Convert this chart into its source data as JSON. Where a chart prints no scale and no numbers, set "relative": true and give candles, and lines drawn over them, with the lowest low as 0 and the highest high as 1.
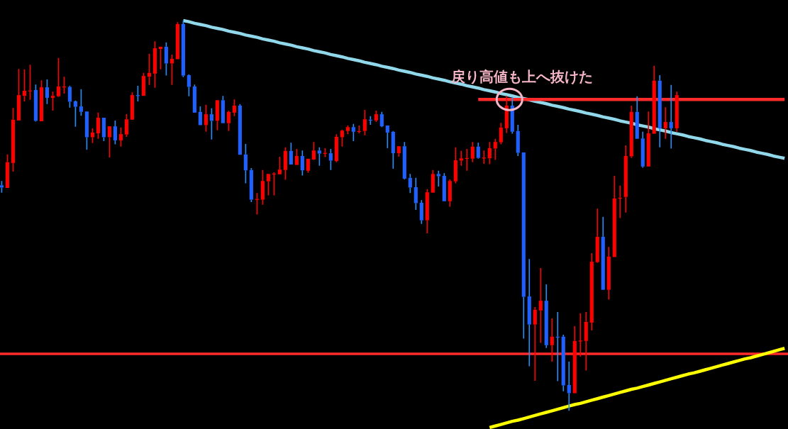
{
  "chart_data": {
    "type": "candlestick",
    "relative": true,
    "categories": [
      null,
      null,
      null,
      null,
      null,
      null,
      null,
      null,
      null,
      null,
      null,
      null,
      null,
      null,
      null,
      null,
      null,
      null,
      null,
      null,
      null,
      null,
      null,
      null,
      null,
      null,
      null,
      null,
      null,
      null,
      null,
      null,
      null,
      null,
      null,
      null,
      null,
      null,
      null,
      null,
      null,
      null,
      null,
      null,
      null,
      null,
      null,
      null,
      null,
      null,
      null,
      null,
      null,
      null,
      null,
      null,
      null,
      null,
      null,
      null,
      null,
      null,
      null,
      null,
      null,
      null,
      null,
      null,
      null,
      null,
      null,
      null,
      null,
      null,
      null,
      null,
      null,
      null,
      null,
      null,
      null,
      null,
      null,
      null,
      null,
      null,
      null,
      null,
      null,
      null,
      null,
      null,
      null,
      null,
      null,
      null,
      null,
      null,
      null,
      null,
      null,
      null,
      null,
      null,
      null,
      null,
      null,
      null,
      null,
      null,
      null,
      null,
      null,
      null,
      null,
      null,
      null,
      null,
      null,
      null,
      null,
      null,
      null,
      null,
      null,
      null,
      null,
      null,
      null,
      null,
      null,
      null,
      null,
      null,
      null,
      null,
      null,
      null,
      null
    ],
    "ohlc": [
      [
        0.578,
        0.589,
        0.559,
        0.572
      ],
      [
        0.571,
        0.657,
        0.571,
        0.637
      ],
      [
        0.635,
        0.776,
        0.613,
        0.746
      ],
      [
        0.744,
        0.876,
        0.744,
        0.809
      ],
      [
        0.807,
        0.875,
        0.793,
        0.82
      ],
      [
        0.82,
        0.887,
        0.797,
        0.821
      ],
      [
        0.822,
        0.836,
        0.741,
        0.743
      ],
      [
        0.742,
        0.847,
        0.742,
        0.829
      ],
      [
        0.829,
        0.849,
        0.786,
        0.802
      ],
      [
        0.802,
        0.818,
        0.769,
        0.807
      ],
      [
        0.806,
        0.904,
        0.804,
        0.831
      ],
      [
        0.83,
        0.856,
        0.813,
        0.831
      ],
      [
        0.83,
        0.833,
        0.777,
        0.792
      ],
      [
        0.793,
        0.795,
        0.728,
        0.779
      ],
      [
        0.78,
        0.824,
        0.756,
        0.766
      ],
      [
        0.767,
        0.767,
        0.669,
        0.701
      ],
      [
        0.701,
        0.724,
        0.686,
        0.713
      ],
      [
        0.711,
        0.764,
        0.697,
        0.751
      ],
      [
        0.751,
        0.751,
        0.691,
        0.701
      ],
      [
        0.701,
        0.729,
        0.649,
        0.729
      ],
      [
        0.729,
        0.744,
        0.683,
        0.693
      ],
      [
        0.693,
        0.726,
        0.677,
        0.709
      ],
      [
        0.708,
        0.76,
        0.702,
        0.747
      ],
      [
        0.746,
        0.816,
        0.746,
        0.809
      ],
      [
        0.809,
        0.833,
        0.793,
        0.808
      ],
      [
        0.807,
        0.866,
        0.807,
        0.858
      ],
      [
        0.856,
        0.915,
        0.835,
        0.866
      ],
      [
        0.864,
        0.947,
        0.828,
        0.929
      ],
      [
        0.927,
        0.933,
        0.875,
        0.933
      ],
      [
        0.933,
        0.944,
        0.859,
        0.89
      ],
      [
        0.89,
        0.913,
        0.835,
        0.902
      ],
      [
        0.901,
        0.996,
        0.901,
        0.991
      ],
      [
        0.991,
        1,
        0.855,
        0.859
      ],
      [
        0.86,
        0.862,
        0.806,
        0.83
      ],
      [
        0.831,
        0.836,
        0.764,
        0.764
      ],
      [
        0.766,
        0.78,
        0.732,
        0.732
      ],
      [
        0.732,
        0.784,
        0.715,
        0.76
      ],
      [
        0.76,
        0.775,
        0.695,
        0.743
      ],
      [
        0.743,
        0.796,
        0.719,
        0.796
      ],
      [
        0.796,
        0.807,
        0.737,
        0.737
      ],
      [
        0.737,
        0.769,
        0.717,
        0.766
      ],
      [
        0.764,
        0.798,
        0.755,
        0.782
      ],
      [
        0.782,
        0.786,
        0.656,
        0.656
      ],
      [
        0.657,
        0.684,
        0.583,
        0.616
      ],
      [
        0.617,
        0.622,
        0.535,
        0.541
      ],
      [
        0.542,
        0.558,
        0.503,
        0.543
      ],
      [
        0.541,
        0.617,
        0.528,
        0.589
      ],
      [
        0.588,
        0.607,
        0.552,
        0.607
      ],
      [
        0.607,
        0.611,
        0.552,
        0.608
      ],
      [
        0.606,
        0.651,
        0.606,
        0.618
      ],
      [
        0.617,
        0.675,
        0.592,
        0.666
      ],
      [
        0.666,
        0.687,
        0.631,
        0.631
      ],
      [
        0.63,
        0.671,
        0.63,
        0.653
      ],
      [
        0.653,
        0.667,
        0.603,
        0.616
      ],
      [
        0.615,
        0.646,
        0.61,
        0.646
      ],
      [
        0.644,
        0.689,
        0.643,
        0.667
      ],
      [
        0.667,
        0.675,
        0.628,
        0.659
      ],
      [
        0.66,
        0.673,
        0.65,
        0.661
      ],
      [
        0.66,
        0.671,
        0.617,
        0.641
      ],
      [
        0.64,
        0.709,
        0.637,
        0.702
      ],
      [
        0.701,
        0.72,
        0.677,
        0.718
      ],
      [
        0.717,
        0.731,
        0.709,
        0.727
      ],
      [
        0.727,
        0.735,
        0.691,
        0.715
      ],
      [
        0.716,
        0.731,
        0.711,
        0.717
      ],
      [
        0.717,
        0.771,
        0.706,
        0.747
      ],
      [
        0.746,
        0.755,
        0.733,
        0.745
      ],
      [
        0.744,
        0.769,
        0.74,
        0.76
      ],
      [
        0.76,
        0.766,
        0.727,
        0.729
      ],
      [
        0.731,
        0.731,
        0.673,
        0.713
      ],
      [
        0.715,
        0.717,
        0.62,
        0.66
      ],
      [
        0.66,
        0.678,
        0.651,
        0.678
      ],
      [
        0.678,
        0.689,
        0.593,
        0.595
      ],
      [
        0.597,
        0.607,
        0.558,
        0.572
      ],
      [
        0.573,
        0.597,
        0.515,
        0.532
      ],
      [
        0.533,
        0.54,
        0.479,
        0.488
      ],
      [
        0.488,
        0.568,
        0.455,
        0.56
      ],
      [
        0.559,
        0.617,
        0.559,
        0.607
      ],
      [
        0.607,
        0.615,
        0.575,
        0.601
      ],
      [
        0.602,
        0.609,
        0.537,
        0.537
      ],
      [
        0.537,
        0.593,
        0.523,
        0.589
      ],
      [
        0.588,
        0.675,
        0.583,
        0.642
      ],
      [
        0.641,
        0.666,
        0.628,
        0.647
      ],
      [
        0.647,
        0.671,
        0.615,
        0.648
      ],
      [
        0.646,
        0.689,
        0.637,
        0.677
      ],
      [
        0.677,
        0.687,
        0.646,
        0.648
      ],
      [
        0.648,
        0.667,
        0.633,
        0.649
      ],
      [
        0.647,
        0.689,
        0.632,
        0.673
      ],
      [
        0.672,
        0.697,
        0.643,
        0.689
      ],
      [
        0.688,
        0.738,
        0.683,
        0.726
      ],
      [
        0.724,
        0.807,
        0.712,
        0.782
      ],
      [
        0.782,
        0.804,
        0.71,
        0.715
      ],
      [
        0.717,
        0.733,
        0.653,
        0.661
      ],
      [
        0.662,
        0.662,
        0.185,
        0.292
      ],
      [
        0.293,
        0.389,
        0.114,
        0.221
      ],
      [
        0.221,
        0.266,
        0.077,
        0.259
      ],
      [
        0.257,
        0.366,
        0.174,
        0.282
      ],
      [
        0.282,
        0.324,
        0.161,
        0.168
      ],
      [
        0.168,
        0.237,
        0.126,
        0.19
      ],
      [
        0.19,
        0.253,
        0.076,
        0.189
      ],
      [
        0.19,
        0.195,
        0.05,
        0.065
      ],
      [
        0.066,
        0.126,
        0,
        0.045
      ],
      [
        0.045,
        0.217,
        0.045,
        0.179
      ],
      [
        0.179,
        0.25,
        0.139,
        0.18
      ],
      [
        0.179,
        0.253,
        0.103,
        0.228
      ],
      [
        0.226,
        0.404,
        0.206,
        0.382
      ],
      [
        0.381,
        0.518,
        0.379,
        0.446
      ],
      [
        0.446,
        0.497,
        0.31,
        0.31
      ],
      [
        0.31,
        0.42,
        0.285,
        0.395
      ],
      [
        0.394,
        0.602,
        0.394,
        0.544
      ],
      [
        0.545,
        0.577,
        0.494,
        0.546
      ],
      [
        0.548,
        0.68,
        0.508,
        0.653
      ],
      [
        0.652,
        0.782,
        0.648,
        0.766
      ],
      [
        0.766,
        0.806,
        0.697,
        0.697
      ],
      [
        0.698,
        0.715,
        0.623,
        0.626
      ],
      [
        0.626,
        0.767,
        0.626,
        0.711
      ],
      [
        0.71,
        0.884,
        0.71,
        0.846
      ],
      [
        0.846,
        0.86,
        0.675,
        0.724
      ],
      [
        0.724,
        0.778,
        0.697,
        0.74
      ],
      [
        0.74,
        0.835,
        0.672,
        0.724
      ],
      [
        0.724,
        0.818,
        0.715,
        0.809
      ],
      null,
      null,
      null,
      null,
      null,
      null,
      null,
      null,
      null,
      null,
      null,
      null,
      null,
      null,
      null,
      null,
      null,
      null,
      null
    ],
    "colors": [
      "#2060ff",
      "#ff0000",
      "#ff0000",
      "#ff0000",
      "#ff0000",
      "#ff0000",
      "#2060ff",
      "#ff0000",
      "#2060ff",
      "#ff0000",
      "#ff0000",
      "#ff0000",
      "#2060ff",
      "#2060ff",
      "#2060ff",
      "#2060ff",
      "#ff0000",
      "#ff0000",
      "#2060ff",
      "#ff0000",
      "#2060ff",
      "#ff0000",
      "#ff0000",
      "#ff0000",
      "#2060ff",
      "#ff0000",
      "#ff0000",
      "#ff0000",
      "#ff0000",
      "#2060ff",
      "#ff0000",
      "#ff0000",
      "#2060ff",
      "#2060ff",
      "#2060ff",
      "#2060ff",
      "#ff0000",
      "#2060ff",
      "#ff0000",
      "#2060ff",
      "#ff0000",
      "#ff0000",
      "#2060ff",
      "#2060ff",
      "#2060ff",
      "#ff0000",
      "#ff0000",
      "#ff0000",
      "#ff0000",
      "#ff0000",
      "#ff0000",
      "#2060ff",
      "#ff0000",
      "#2060ff",
      "#ff0000",
      "#ff0000",
      "#2060ff",
      "#ff0000",
      "#2060ff",
      "#ff0000",
      "#ff0000",
      "#ff0000",
      "#2060ff",
      "#ff0000",
      "#ff0000",
      "#2060ff",
      "#ff0000",
      "#2060ff",
      "#2060ff",
      "#2060ff",
      "#ff0000",
      "#2060ff",
      "#2060ff",
      "#2060ff",
      "#2060ff",
      "#ff0000",
      "#ff0000",
      "#2060ff",
      "#2060ff",
      "#ff0000",
      "#ff0000",
      "#ff0000",
      "#ff0000",
      "#ff0000",
      "#2060ff",
      "#ff0000",
      "#ff0000",
      "#ff0000",
      "#ff0000",
      "#ff0000",
      "#2060ff",
      "#2060ff",
      "#2060ff",
      "#2060ff",
      "#ff0000",
      "#ff0000",
      "#2060ff",
      "#ff0000",
      "#2060ff",
      "#2060ff",
      "#2060ff",
      "#ff0000",
      "#ff0000",
      "#ff0000",
      "#ff0000",
      "#ff0000",
      "#2060ff",
      "#ff0000",
      "#ff0000",
      "#ff0000",
      "#ff0000",
      "#ff0000",
      "#2060ff",
      "#2060ff",
      "#ff0000",
      "#ff0000",
      "#2060ff",
      "#ff0000",
      "#2060ff",
      "#ff0000",
      null,
      null,
      null,
      null,
      null,
      null,
      null,
      null,
      null,
      null,
      null,
      null,
      null,
      null,
      null,
      null,
      null,
      null,
      null
    ],
    "series": [
      {
        "type": "line",
        "color": "#90d8ea",
        "values": [
          null,
          null,
          null,
          null,
          null,
          null,
          null,
          null,
          null,
          null,
          null,
          null,
          null,
          null,
          null,
          null,
          null,
          null,
          null,
          null,
          null,
          null,
          null,
          null,
          null,
          null,
          null,
          null,
          null,
          null,
          null,
          null,
          1.0,
          0.997,
          0.993,
          0.99,
          0.987,
          0.983,
          0.98,
          0.977,
          0.973,
          0.97,
          0.967,
          0.963,
          0.96,
          0.957,
          0.953,
          0.95,
          0.947,
          0.943,
          0.94,
          0.937,
          0.933,
          0.93,
          0.927,
          0.923,
          0.92,
          0.917,
          0.913,
          0.91,
          0.907,
          0.903,
          0.9,
          0.897,
          0.893,
          0.89,
          0.887,
          0.883,
          0.88,
          0.877,
          0.873,
          0.87,
          0.867,
          0.863,
          0.86,
          0.857,
          0.853,
          0.85,
          0.847,
          0.843,
          0.84,
          0.837,
          0.833,
          0.83,
          0.827,
          0.823,
          0.82,
          0.817,
          0.813,
          0.81,
          0.807,
          0.803,
          0.8,
          0.797,
          0.793,
          0.79,
          0.787,
          0.783,
          0.78,
          0.777,
          0.773,
          0.77,
          0.767,
          0.763,
          0.76,
          0.757,
          0.753,
          0.75,
          0.747,
          0.743,
          0.74,
          0.737,
          0.733,
          0.73,
          0.727,
          0.723,
          0.72,
          0.717,
          0.713,
          0.71,
          0.707,
          0.703,
          0.7,
          0.697,
          0.693,
          0.69,
          0.687,
          0.683,
          0.68,
          0.677,
          0.673,
          0.67,
          0.667,
          0.663,
          0.66,
          0.657,
          0.653,
          0.65,
          0.647
        ]
      },
      {
        "type": "line",
        "color": "#ff2a2a",
        "values": [
          null,
          null,
          null,
          null,
          null,
          null,
          null,
          null,
          null,
          null,
          null,
          null,
          null,
          null,
          null,
          null,
          null,
          null,
          null,
          null,
          null,
          null,
          null,
          null,
          null,
          null,
          null,
          null,
          null,
          null,
          null,
          null,
          null,
          null,
          null,
          null,
          null,
          null,
          null,
          null,
          null,
          null,
          null,
          null,
          null,
          null,
          null,
          null,
          null,
          null,
          null,
          null,
          null,
          null,
          null,
          null,
          null,
          null,
          null,
          null,
          null,
          null,
          null,
          null,
          null,
          null,
          null,
          null,
          null,
          null,
          null,
          null,
          null,
          null,
          null,
          null,
          null,
          null,
          null,
          null,
          null,
          null,
          null,
          null,
          0.798,
          0.798,
          0.798,
          0.798,
          0.798,
          0.798,
          0.798,
          0.798,
          0.798,
          0.798,
          0.798,
          0.798,
          0.798,
          0.798,
          0.798,
          0.798,
          0.798,
          0.798,
          0.798,
          0.798,
          0.798,
          0.798,
          0.798,
          0.798,
          0.798,
          0.798,
          0.798,
          0.798,
          0.798,
          0.798,
          0.798,
          0.798,
          0.798,
          0.798,
          0.798,
          0.798,
          0.798,
          0.798,
          0.798,
          0.798,
          0.798,
          0.798,
          0.798,
          0.798,
          0.798,
          0.798,
          0.798,
          0.798,
          0.798,
          0.798,
          0.798,
          0.798,
          0.798,
          0.798,
          0.798
        ]
      },
      {
        "type": "line",
        "color": "#ffff00",
        "values": [
          null,
          null,
          null,
          null,
          null,
          null,
          null,
          null,
          null,
          null,
          null,
          null,
          null,
          null,
          null,
          null,
          null,
          null,
          null,
          null,
          null,
          null,
          null,
          null,
          null,
          null,
          null,
          null,
          null,
          null,
          null,
          null,
          null,
          null,
          null,
          null,
          null,
          null,
          null,
          null,
          null,
          null,
          null,
          null,
          null,
          null,
          null,
          null,
          null,
          null,
          null,
          null,
          null,
          null,
          null,
          null,
          null,
          null,
          null,
          null,
          null,
          null,
          null,
          null,
          null,
          null,
          null,
          null,
          null,
          null,
          null,
          null,
          null,
          null,
          null,
          null,
          null,
          null,
          null,
          null,
          null,
          null,
          null,
          null,
          null,
          null,
          -0.043,
          -0.039,
          -0.035,
          -0.031,
          -0.027,
          -0.024,
          -0.02,
          -0.016,
          -0.012,
          -0.008,
          -0.004,
          0.0,
          0.004,
          0.008,
          0.012,
          0.016,
          0.019,
          0.023,
          0.027,
          0.031,
          0.035,
          0.039,
          0.043,
          0.047,
          0.051,
          0.055,
          0.058,
          0.062,
          0.066,
          0.07,
          0.074,
          0.078,
          0.082,
          0.086,
          0.09,
          0.094,
          0.097,
          0.101,
          0.105,
          0.109,
          0.113,
          0.117,
          0.121,
          0.125,
          0.129,
          0.133,
          0.136,
          0.14,
          0.144,
          0.148,
          0.152,
          0.156,
          0.16
        ]
      }
    ],
    "ref_lines": [
      {
        "axis": "y",
        "value": 0.146,
        "color": "#ff2a2a"
      }
    ],
    "annotations": [
      "戻り高値も上へ抜けた"
    ]
  }
}
